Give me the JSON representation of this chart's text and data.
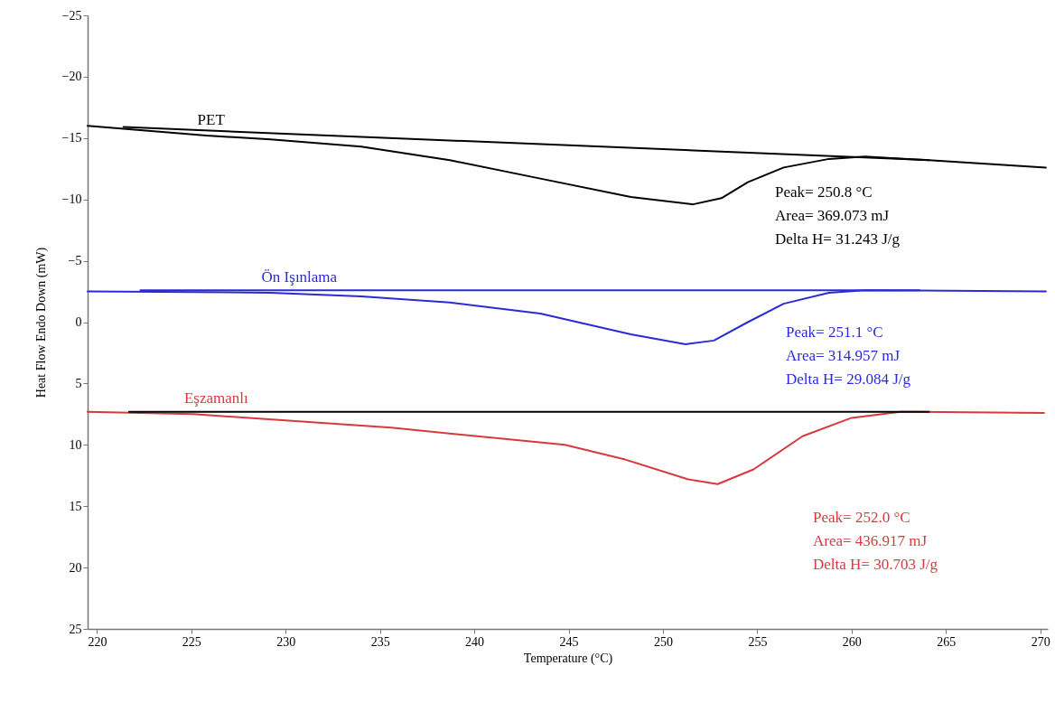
{
  "chart_data": {
    "type": "line",
    "xlabel": "Temperature (°C)",
    "ylabel": "Heat Flow Endo Down (mW)",
    "xlim": [
      219.5,
      270.4
    ],
    "xticks": [
      220,
      225,
      230,
      235,
      240,
      245,
      250,
      255,
      260,
      265,
      270
    ],
    "ylim": [
      25,
      -25
    ],
    "yticks": [
      -25,
      -20,
      -15,
      -10,
      -5,
      0,
      5,
      10,
      15,
      20,
      25
    ],
    "grid": false,
    "series": [
      {
        "name": "PET",
        "color": "#000000",
        "x": [
          219.5,
          225.8,
          229.2,
          234.0,
          238.7,
          243.5,
          248.3,
          251.6,
          253.1,
          254.5,
          256.4,
          258.8,
          260.7,
          264.1,
          270.3
        ],
        "values": [
          -16.0,
          -15.2,
          -14.9,
          -14.3,
          -13.2,
          -11.7,
          -10.2,
          -9.6,
          -10.1,
          -11.4,
          -12.6,
          -13.3,
          -13.5,
          -13.2,
          -12.6
        ]
      },
      {
        "name": "Ön Işınlama",
        "color": "#2b2bd6",
        "x": [
          219.5,
          229.2,
          234.0,
          238.7,
          243.5,
          248.3,
          251.2,
          252.7,
          254.5,
          256.4,
          258.8,
          260.7,
          270.3
        ],
        "values": [
          -2.5,
          -2.4,
          -2.1,
          -1.6,
          -0.7,
          1.0,
          1.8,
          1.5,
          0.0,
          -1.5,
          -2.4,
          -2.6,
          -2.5
        ]
      },
      {
        "name": "Eşzamanlı",
        "color": "#d63a3e",
        "x": [
          219.5,
          225.1,
          235.6,
          244.8,
          248.0,
          251.3,
          252.9,
          254.8,
          257.4,
          260.0,
          262.6,
          270.2
        ],
        "values": [
          7.3,
          7.5,
          8.6,
          10.0,
          11.2,
          12.8,
          13.2,
          12.0,
          9.3,
          7.8,
          7.3,
          7.4
        ]
      },
      {
        "color": "#000000",
        "x": [
          221.4,
          264.1
        ],
        "values": [
          -15.9,
          -13.2
        ]
      },
      {
        "color": "#2b2bd6",
        "x": [
          222.3,
          263.6
        ],
        "values": [
          -2.6,
          -2.6
        ]
      },
      {
        "color": "#000000",
        "x": [
          221.7,
          264.1
        ],
        "values": [
          7.3,
          7.3
        ]
      }
    ],
    "annotations": [
      "Peak= 250.8 °C\nArea= 369.073 mJ\nDelta H= 31.243 J/g",
      "Peak= 251.1 °C\nArea= 314.957 mJ\nDelta H= 29.084 J/g",
      "Peak= 252.0 °C\nArea= 436.917 mJ\nDelta H= 30.703 J/g"
    ]
  }
}
